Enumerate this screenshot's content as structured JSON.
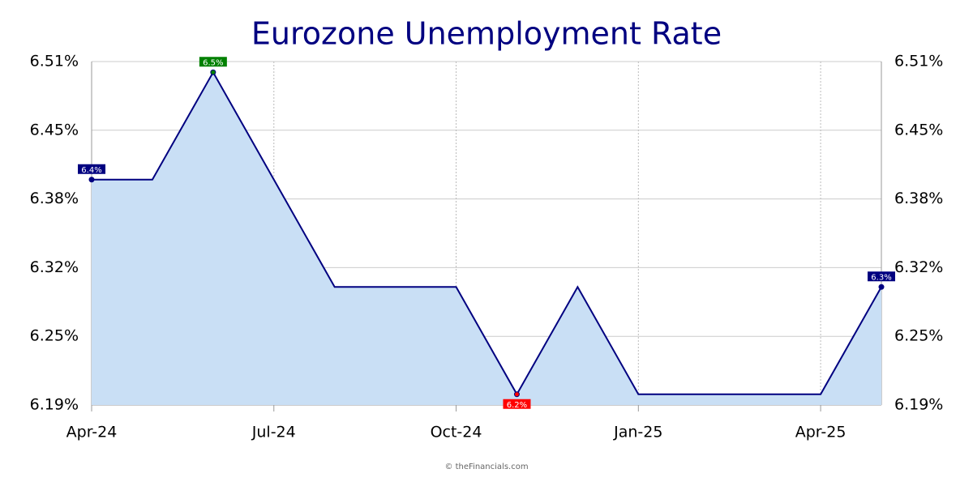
{
  "chart_data": {
    "type": "area",
    "title": "Eurozone Unemployment Rate",
    "x": [
      "2024-04",
      "2024-05",
      "2024-06",
      "2024-07",
      "2024-08",
      "2024-09",
      "2024-10",
      "2024-11",
      "2024-12",
      "2025-01",
      "2025-02",
      "2025-03",
      "2025-04",
      "2025-05"
    ],
    "series": [
      {
        "color": "#000080",
        "fill": "#c9dff5",
        "values": [
          6.4,
          6.4,
          6.5,
          6.4,
          6.3,
          6.3,
          6.3,
          6.2,
          6.3,
          6.2,
          6.2,
          6.2,
          6.2,
          6.3
        ],
        "value_labels": [
          "6.4%",
          null,
          "6.5%",
          null,
          null,
          null,
          null,
          "6.2%",
          null,
          null,
          null,
          null,
          null,
          "6.3%"
        ]
      }
    ],
    "label_color": "#000080",
    "max_color": "#008000",
    "min_color": "#ff0000",
    "xlim": [
      "2024-04",
      "2025-05"
    ],
    "xticks": [
      {
        "value": "2024-04",
        "label": "Apr-24"
      },
      {
        "value": "2024-07",
        "label": "Jul-24"
      },
      {
        "value": "2024-10",
        "label": "Oct-24"
      },
      {
        "value": "2025-01",
        "label": "Jan-25"
      },
      {
        "value": "2025-04",
        "label": "Apr-25"
      }
    ],
    "ylim": [
      6.19,
      6.51
    ],
    "yticks": [
      {
        "value": 6.19,
        "label": "6.19%"
      },
      {
        "value": 6.254,
        "label": "6.25%"
      },
      {
        "value": 6.318,
        "label": "6.32%"
      },
      {
        "value": 6.382,
        "label": "6.38%"
      },
      {
        "value": 6.446,
        "label": "6.45%"
      },
      {
        "value": 6.51,
        "label": "6.51%"
      }
    ],
    "grid": true,
    "source": "© theFinancials.com"
  }
}
